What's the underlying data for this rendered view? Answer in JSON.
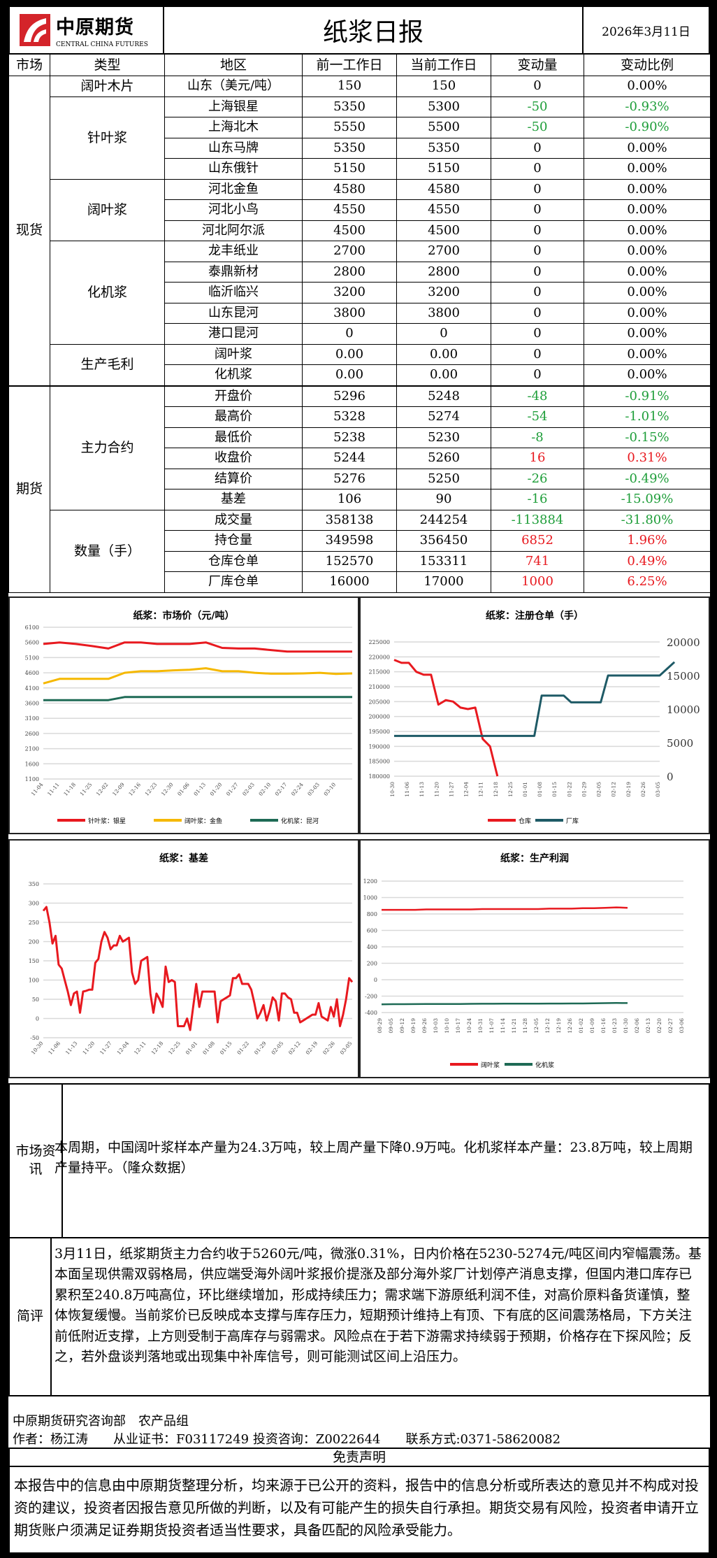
{
  "header": {
    "logo_cn": "中原期货",
    "logo_en": "CENTRAL CHINA FUTURES",
    "title": "纸浆日报",
    "date": "2026年3月11日"
  },
  "table": {
    "columns": [
      "市场",
      "类型",
      "地区",
      "前一工作日",
      "当前工作日",
      "变动量",
      "变动比例"
    ],
    "colors": {
      "up": "#e8191f",
      "down": "#1f9e3a",
      "flat": "#000000"
    },
    "markets": [
      {
        "name": "现货",
        "types": [
          {
            "name": "阔叶木片",
            "rows": [
              {
                "region": "山东（美元/吨）",
                "prev": "150",
                "curr": "150",
                "change": "0",
                "pct": "0.00%",
                "dir": "flat"
              }
            ]
          },
          {
            "name": "针叶浆",
            "rows": [
              {
                "region": "上海银星",
                "prev": "5350",
                "curr": "5300",
                "change": "-50",
                "pct": "-0.93%",
                "dir": "down"
              },
              {
                "region": "上海北木",
                "prev": "5550",
                "curr": "5500",
                "change": "-50",
                "pct": "-0.90%",
                "dir": "down"
              },
              {
                "region": "山东马牌",
                "prev": "5350",
                "curr": "5350",
                "change": "0",
                "pct": "0.00%",
                "dir": "flat"
              },
              {
                "region": "山东俄针",
                "prev": "5150",
                "curr": "5150",
                "change": "0",
                "pct": "0.00%",
                "dir": "flat"
              }
            ]
          },
          {
            "name": "阔叶浆",
            "rows": [
              {
                "region": "河北金鱼",
                "prev": "4580",
                "curr": "4580",
                "change": "0",
                "pct": "0.00%",
                "dir": "flat"
              },
              {
                "region": "河北小鸟",
                "prev": "4550",
                "curr": "4550",
                "change": "0",
                "pct": "0.00%",
                "dir": "flat"
              },
              {
                "region": "河北阿尔派",
                "prev": "4500",
                "curr": "4500",
                "change": "0",
                "pct": "0.00%",
                "dir": "flat"
              }
            ]
          },
          {
            "name": "化机浆",
            "rows": [
              {
                "region": "龙丰纸业",
                "prev": "2700",
                "curr": "2700",
                "change": "0",
                "pct": "0.00%",
                "dir": "flat"
              },
              {
                "region": "泰鼎新材",
                "prev": "2800",
                "curr": "2800",
                "change": "0",
                "pct": "0.00%",
                "dir": "flat"
              },
              {
                "region": "临沂临兴",
                "prev": "3200",
                "curr": "3200",
                "change": "0",
                "pct": "0.00%",
                "dir": "flat"
              },
              {
                "region": "山东昆河",
                "prev": "3800",
                "curr": "3800",
                "change": "0",
                "pct": "0.00%",
                "dir": "flat"
              },
              {
                "region": "港口昆河",
                "prev": "0",
                "curr": "0",
                "change": "0",
                "pct": "0.00%",
                "dir": "flat"
              }
            ]
          },
          {
            "name": "生产毛利",
            "rows": [
              {
                "region": "阔叶浆",
                "prev": "0.00",
                "curr": "0.00",
                "change": "0",
                "pct": "0.00%",
                "dir": "flat"
              },
              {
                "region": "化机浆",
                "prev": "0.00",
                "curr": "0.00",
                "change": "0",
                "pct": "0.00%",
                "dir": "flat"
              }
            ]
          }
        ]
      },
      {
        "name": "期货",
        "types": [
          {
            "name": "主力合约",
            "rows": [
              {
                "region": "开盘价",
                "prev": "5296",
                "curr": "5248",
                "change": "-48",
                "pct": "-0.91%",
                "dir": "down"
              },
              {
                "region": "最高价",
                "prev": "5328",
                "curr": "5274",
                "change": "-54",
                "pct": "-1.01%",
                "dir": "down"
              },
              {
                "region": "最低价",
                "prev": "5238",
                "curr": "5230",
                "change": "-8",
                "pct": "-0.15%",
                "dir": "down"
              },
              {
                "region": "收盘价",
                "prev": "5244",
                "curr": "5260",
                "change": "16",
                "pct": "0.31%",
                "dir": "up"
              },
              {
                "region": "结算价",
                "prev": "5276",
                "curr": "5250",
                "change": "-26",
                "pct": "-0.49%",
                "dir": "down"
              },
              {
                "region": "基差",
                "prev": "106",
                "curr": "90",
                "change": "-16",
                "pct": "-15.09%",
                "dir": "down"
              }
            ]
          },
          {
            "name": "数量（手）",
            "rows": [
              {
                "region": "成交量",
                "prev": "358138",
                "curr": "244254",
                "change": "-113884",
                "pct": "-31.80%",
                "dir": "down"
              },
              {
                "region": "持仓量",
                "prev": "349598",
                "curr": "356450",
                "change": "6852",
                "pct": "1.96%",
                "dir": "up"
              },
              {
                "region": "仓库仓单",
                "prev": "152570",
                "curr": "153311",
                "change": "741",
                "pct": "0.49%",
                "dir": "up"
              },
              {
                "region": "厂库仓单",
                "prev": "16000",
                "curr": "17000",
                "change": "1000",
                "pct": "6.25%",
                "dir": "up"
              }
            ]
          }
        ]
      }
    ]
  },
  "chart_data": [
    {
      "type": "line",
      "title": "纸浆：市场价（元/吨）",
      "ylim": [
        1100,
        6100
      ],
      "yticks": [
        1100,
        1600,
        2100,
        2600,
        3100,
        3600,
        4100,
        4600,
        5100,
        5600,
        6100
      ],
      "grid": true,
      "legend": "bottom",
      "x_labels": [
        "11-04",
        "11-11",
        "11-18",
        "11-25",
        "12-02",
        "12-09",
        "12-16",
        "12-23",
        "12-30",
        "01-06",
        "01-13",
        "01-20",
        "01-27",
        "02-03",
        "02-10",
        "02-17",
        "02-24",
        "03-03",
        "03-10"
      ],
      "series": [
        {
          "name": "针叶浆：银星",
          "color": "#e8191f",
          "values": [
            5550,
            5600,
            5550,
            5480,
            5400,
            5600,
            5600,
            5550,
            5550,
            5550,
            5600,
            5420,
            5400,
            5400,
            5350,
            5300,
            5300,
            5300,
            5300,
            5300
          ]
        },
        {
          "name": "阔叶浆：金鱼",
          "color": "#f5b800",
          "values": [
            4250,
            4400,
            4400,
            4400,
            4400,
            4600,
            4650,
            4650,
            4680,
            4700,
            4750,
            4650,
            4650,
            4600,
            4570,
            4570,
            4580,
            4600,
            4560,
            4580
          ]
        },
        {
          "name": "化机浆：昆河",
          "color": "#1e6a55",
          "values": [
            3700,
            3700,
            3700,
            3700,
            3700,
            3800,
            3800,
            3800,
            3800,
            3800,
            3800,
            3800,
            3800,
            3800,
            3800,
            3800,
            3800,
            3800,
            3800,
            3800
          ]
        }
      ]
    },
    {
      "type": "line",
      "title": "纸浆：注册仓单（手）",
      "ylim": [
        180000,
        225000
      ],
      "yticks": [
        180000,
        185000,
        190000,
        195000,
        200000,
        205000,
        210000,
        215000,
        220000,
        225000
      ],
      "y2lim": [
        0,
        20000
      ],
      "y2ticks": [
        0,
        5000,
        10000,
        15000,
        20000
      ],
      "grid": true,
      "legend": "bottom",
      "x_labels": [
        "10-30",
        "11-06",
        "11-13",
        "11-20",
        "11-27",
        "12-04",
        "12-11",
        "12-18",
        "12-25",
        "01-01",
        "01-08",
        "01-15",
        "01-22",
        "01-29",
        "02-05",
        "02-12",
        "02-19",
        "02-26",
        "03-05"
      ],
      "series": [
        {
          "name": "仓库",
          "axis": "left",
          "color": "#e8191f",
          "values": [
            219000,
            218000,
            218000,
            215000,
            214000,
            214000,
            204000,
            205500,
            205000,
            203000,
            202500,
            203000,
            192500,
            190000,
            180000
          ]
        },
        {
          "name": "厂库",
          "axis": "right",
          "color": "#1e5a66",
          "values": [
            6000,
            6000,
            6000,
            6000,
            6000,
            6000,
            6000,
            6000,
            6000,
            6000,
            6000,
            6000,
            6000,
            6000,
            6000,
            6000,
            6000,
            6000,
            6000,
            6000,
            12000,
            12000,
            12000,
            12000,
            11000,
            11000,
            11000,
            11000,
            11000,
            15000,
            15000,
            15000,
            15000,
            15000,
            15000,
            15000,
            15000,
            16000,
            17000
          ]
        }
      ]
    },
    {
      "type": "line",
      "title": "纸浆：基差",
      "ylim": [
        -50,
        350
      ],
      "yticks": [
        -50,
        0,
        50,
        100,
        150,
        200,
        250,
        300,
        350
      ],
      "grid": true,
      "x_labels": [
        "10-30",
        "11-06",
        "11-13",
        "11-20",
        "11-27",
        "12-04",
        "12-11",
        "12-18",
        "12-25",
        "01-01",
        "01-08",
        "01-15",
        "01-22",
        "01-29",
        "02-05",
        "02-12",
        "02-19",
        "02-26",
        "03-05"
      ],
      "series": [
        {
          "color": "#e8191f",
          "values": [
            280,
            290,
            250,
            195,
            215,
            140,
            130,
            100,
            70,
            35,
            65,
            70,
            15,
            70,
            72,
            75,
            75,
            145,
            155,
            200,
            225,
            210,
            180,
            190,
            190,
            215,
            200,
            205,
            210,
            120,
            90,
            100,
            150,
            155,
            160,
            65,
            15,
            65,
            50,
            30,
            135,
            95,
            100,
            95,
            -20,
            -20,
            -20,
            0,
            -30,
            30,
            90,
            30,
            70,
            70,
            70,
            70,
            70,
            -10,
            45,
            50,
            55,
            60,
            105,
            105,
            115,
            90,
            90,
            90,
            75,
            40,
            0,
            15,
            35,
            -5,
            20,
            55,
            45,
            -5,
            65,
            65,
            55,
            50,
            15,
            15,
            -10,
            -5,
            0,
            5,
            10,
            10,
            40,
            5,
            0,
            -5,
            30,
            5,
            50,
            -20,
            10,
            50,
            105,
            95
          ]
        }
      ]
    },
    {
      "type": "line",
      "title": "纸浆：生产利润",
      "ylim": [
        -400,
        1200
      ],
      "yticks": [
        -400,
        -200,
        0,
        200,
        400,
        600,
        800,
        1000,
        1200
      ],
      "grid": true,
      "legend": "bottom",
      "x_labels": [
        "08-29",
        "09-05",
        "09-12",
        "09-19",
        "09-26",
        "10-03",
        "10-10",
        "10-17",
        "10-24",
        "10-31",
        "11-07",
        "11-14",
        "11-21",
        "11-28",
        "12-05",
        "12-12",
        "12-19",
        "12-26",
        "01-02",
        "01-09",
        "01-16",
        "01-23",
        "01-30",
        "02-06",
        "02-13",
        "02-20",
        "02-27",
        "03-06"
      ],
      "series": [
        {
          "name": "阔叶浆",
          "color": "#e8191f",
          "values": [
            850,
            850,
            850,
            850,
            855,
            855,
            855,
            855,
            855,
            860,
            860,
            860,
            860,
            860,
            860,
            865,
            865,
            865,
            870,
            870,
            875,
            880,
            875
          ]
        },
        {
          "name": "化机浆",
          "color": "#1e6a55",
          "values": [
            -300,
            -298,
            -298,
            -297,
            -296,
            -296,
            -295,
            -295,
            -294,
            -293,
            -293,
            -292,
            -292,
            -291,
            -291,
            -290,
            -290,
            -289,
            -289,
            -288,
            -285,
            -283,
            -284
          ]
        }
      ]
    }
  ],
  "market_info": {
    "label": "市场资讯",
    "text": "本周期，中国阔叶浆样本产量为24.3万吨，较上周产量下降0.9万吨。化机浆样本产量：23.8万吨，较上周期产量持平。（隆众数据）"
  },
  "comment": {
    "label": "简评",
    "text": "3月11日，纸浆期货主力合约收于5260元/吨，微涨0.31%，日内价格在5230-5274元/吨区间内窄幅震荡。基本面呈现供需双弱格局，供应端受海外阔叶浆报价提涨及部分海外浆厂计划停产消息支撑，但国内港口库存已累积至240.8万吨高位，环比继续增加，形成持续压力；需求端下游原纸利润不佳，对高价原料备货谨慎，整体恢复缓慢。当前浆价已反映成本支撑与库存压力，短期预计维持上有顶、下有底的区间震荡格局，下方关注前低附近支撑，上方则受制于高库存与弱需求。风险点在于若下游需求持续弱于预期，价格存在下探风险；反之，若外盘谈判落地或出现集中补库信号，则可能测试区间上沿压力。"
  },
  "footer": {
    "dept": "中原期货研究咨询部　农产品组",
    "author": "作者：杨江涛　　从业证书：F03117249 投资咨询：Z0022644　　联系方式:0371-58620082"
  },
  "disclaimer": {
    "title": "免责声明",
    "text": "本报告中的信息由中原期货整理分析，均来源于已公开的资料，报告中的信息分析或所表达的意见并不构成对投资的建议，投资者因报告意见所做的判断，以及有可能产生的损失自行承担。期货交易有风险，投资者申请开立期货账户须满足证券期货投资者适当性要求，具备匹配的风险承受能力。"
  }
}
